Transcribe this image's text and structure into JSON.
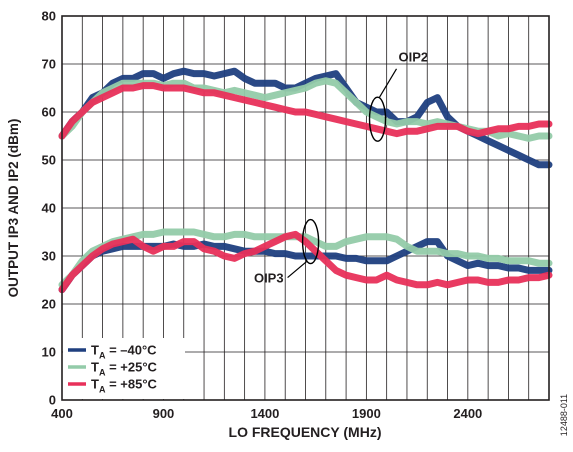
{
  "chart_data": {
    "type": "line",
    "title": "",
    "xlabel": "LO FREQUENCY (MHz)",
    "ylabel": "OUTPUT IP3 AND IP2 (dBm)",
    "xlim": [
      400,
      2800
    ],
    "ylim": [
      0,
      80
    ],
    "x_ticks": [
      400,
      900,
      1400,
      1900,
      2400
    ],
    "y_ticks": [
      0,
      10,
      20,
      30,
      40,
      50,
      60,
      70,
      80
    ],
    "grid": true,
    "legend_position": "bottom-left",
    "annotations": [
      {
        "text": "OIP2",
        "x": 1950,
        "y": 58
      },
      {
        "text": "OIP3",
        "x": 1630,
        "y": 31
      }
    ],
    "figure_id": "12488-011",
    "legend": [
      {
        "prefix": "T",
        "sub": "A",
        "suffix": " = –40°C",
        "color": "#1f3f7f"
      },
      {
        "prefix": "T",
        "sub": "A",
        "suffix": " = +25°C",
        "color": "#93cba9"
      },
      {
        "prefix": "T",
        "sub": "A",
        "suffix": " = +85°C",
        "color": "#e8305a"
      }
    ],
    "series": [
      {
        "legend_index": 0,
        "group": "OIP2",
        "x": [
          400,
          450,
          500,
          550,
          600,
          650,
          700,
          750,
          800,
          850,
          900,
          950,
          1000,
          1050,
          1100,
          1150,
          1200,
          1250,
          1300,
          1350,
          1400,
          1450,
          1500,
          1550,
          1600,
          1650,
          1700,
          1750,
          1800,
          1850,
          1900,
          1950,
          2000,
          2050,
          2100,
          2150,
          2200,
          2250,
          2300,
          2350,
          2400,
          2450,
          2500,
          2550,
          2600,
          2650,
          2700,
          2750,
          2800
        ],
        "y": [
          55,
          58,
          60,
          63,
          64,
          66,
          67,
          67,
          68,
          68,
          67,
          68,
          68.5,
          68,
          68,
          67.5,
          68,
          68.5,
          67,
          66,
          66,
          66,
          65,
          65,
          66,
          67,
          67.5,
          68,
          65,
          62,
          61,
          60,
          60,
          58,
          58,
          59,
          62,
          63,
          59,
          57,
          56,
          55,
          54,
          53,
          52,
          51,
          50,
          49,
          49
        ]
      },
      {
        "legend_index": 1,
        "group": "OIP2",
        "x": [
          400,
          450,
          500,
          550,
          600,
          650,
          700,
          750,
          800,
          850,
          900,
          950,
          1000,
          1050,
          1100,
          1150,
          1200,
          1250,
          1300,
          1350,
          1400,
          1450,
          1500,
          1550,
          1600,
          1650,
          1700,
          1750,
          1800,
          1850,
          1900,
          1950,
          2000,
          2050,
          2100,
          2150,
          2200,
          2250,
          2300,
          2350,
          2400,
          2450,
          2500,
          2550,
          2600,
          2650,
          2700,
          2750,
          2800
        ],
        "y": [
          55,
          57,
          60,
          62,
          64,
          65,
          66,
          66,
          66,
          66,
          65.5,
          66,
          66,
          65,
          65,
          64.5,
          64,
          64.5,
          64,
          63.5,
          63,
          63.5,
          64,
          64.5,
          65,
          66,
          66.5,
          66,
          64,
          62,
          60,
          59,
          58,
          57.5,
          58,
          58,
          57.5,
          58,
          57.5,
          57,
          56.5,
          56,
          56,
          55,
          55.5,
          55,
          54.5,
          55,
          55
        ]
      },
      {
        "legend_index": 2,
        "group": "OIP2",
        "x": [
          400,
          450,
          500,
          550,
          600,
          650,
          700,
          750,
          800,
          850,
          900,
          950,
          1000,
          1050,
          1100,
          1150,
          1200,
          1250,
          1300,
          1350,
          1400,
          1450,
          1500,
          1550,
          1600,
          1650,
          1700,
          1750,
          1800,
          1850,
          1900,
          1950,
          2000,
          2050,
          2100,
          2150,
          2200,
          2250,
          2300,
          2350,
          2400,
          2450,
          2500,
          2550,
          2600,
          2650,
          2700,
          2750,
          2800
        ],
        "y": [
          55,
          58,
          60,
          62,
          63,
          64,
          65,
          65,
          65.5,
          65.5,
          65,
          65,
          65,
          64.5,
          64,
          64,
          63.5,
          63,
          62.5,
          62,
          61.5,
          61,
          60.5,
          60,
          60,
          59.5,
          59,
          58.5,
          58,
          57.5,
          57,
          56.5,
          56,
          55.5,
          56,
          56,
          56.5,
          57,
          57,
          57,
          56,
          55.5,
          56,
          56.5,
          56.5,
          57,
          57,
          57.5,
          57.5
        ]
      },
      {
        "legend_index": 0,
        "group": "OIP3",
        "x": [
          400,
          450,
          500,
          550,
          600,
          650,
          700,
          750,
          800,
          850,
          900,
          950,
          1000,
          1050,
          1100,
          1150,
          1200,
          1250,
          1300,
          1350,
          1400,
          1450,
          1500,
          1550,
          1600,
          1650,
          1700,
          1750,
          1800,
          1850,
          1900,
          1950,
          2000,
          2050,
          2100,
          2150,
          2200,
          2250,
          2300,
          2350,
          2400,
          2450,
          2500,
          2550,
          2600,
          2650,
          2700,
          2750,
          2800
        ],
        "y": [
          23,
          26,
          28,
          30,
          31,
          31.5,
          32,
          32,
          32,
          32,
          32,
          32.5,
          32,
          32,
          32.5,
          32,
          32,
          31.5,
          31,
          31,
          31,
          30.5,
          30.5,
          30,
          30,
          30,
          30,
          30,
          29.5,
          29.5,
          29,
          29,
          29,
          30,
          31,
          32,
          33,
          33,
          30,
          29,
          28,
          28.5,
          28,
          28,
          27.5,
          27.5,
          27,
          27,
          27
        ]
      },
      {
        "legend_index": 1,
        "group": "OIP3",
        "x": [
          400,
          450,
          500,
          550,
          600,
          650,
          700,
          750,
          800,
          850,
          900,
          950,
          1000,
          1050,
          1100,
          1150,
          1200,
          1250,
          1300,
          1350,
          1400,
          1450,
          1500,
          1550,
          1600,
          1650,
          1700,
          1750,
          1800,
          1850,
          1900,
          1950,
          2000,
          2050,
          2100,
          2150,
          2200,
          2250,
          2300,
          2350,
          2400,
          2450,
          2500,
          2550,
          2600,
          2650,
          2700,
          2750,
          2800
        ],
        "y": [
          24,
          26,
          29,
          31,
          32,
          33,
          33.5,
          34,
          34.5,
          34.5,
          35,
          35,
          35,
          35,
          34.5,
          34,
          34,
          34.5,
          34.5,
          34,
          34,
          34,
          34,
          34,
          34,
          33,
          32,
          32,
          33,
          33.5,
          34,
          34,
          34,
          33.5,
          32,
          31,
          31,
          31,
          30.5,
          30.5,
          30,
          30,
          29.5,
          29.5,
          29,
          29,
          29,
          28.5,
          28.5
        ]
      },
      {
        "legend_index": 2,
        "group": "OIP3",
        "x": [
          400,
          450,
          500,
          550,
          600,
          650,
          700,
          750,
          800,
          850,
          900,
          950,
          1000,
          1050,
          1100,
          1150,
          1200,
          1250,
          1300,
          1350,
          1400,
          1450,
          1500,
          1550,
          1600,
          1650,
          1700,
          1750,
          1800,
          1850,
          1900,
          1950,
          2000,
          2050,
          2100,
          2150,
          2200,
          2250,
          2300,
          2350,
          2400,
          2450,
          2500,
          2550,
          2600,
          2650,
          2700,
          2750,
          2800
        ],
        "y": [
          23,
          26,
          28,
          30,
          31.5,
          32.5,
          33,
          33.5,
          32,
          31,
          32,
          32,
          33,
          33,
          31.5,
          31,
          30,
          29.5,
          30.5,
          31,
          32,
          33,
          34,
          34.5,
          33,
          31,
          29,
          27,
          26,
          25.5,
          25,
          25,
          26,
          25,
          24.5,
          24,
          24,
          24.5,
          24,
          24.5,
          25,
          25,
          24.5,
          24.5,
          25,
          25,
          25.5,
          25.5,
          26
        ]
      }
    ]
  }
}
